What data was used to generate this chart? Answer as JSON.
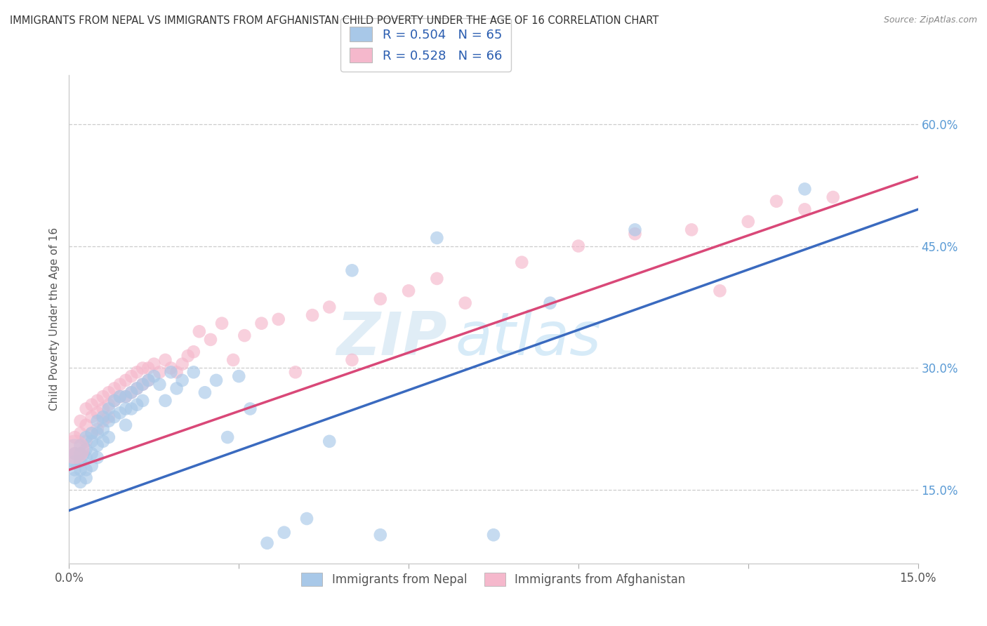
{
  "title": "IMMIGRANTS FROM NEPAL VS IMMIGRANTS FROM AFGHANISTAN CHILD POVERTY UNDER THE AGE OF 16 CORRELATION CHART",
  "source": "Source: ZipAtlas.com",
  "ylabel": "Child Poverty Under the Age of 16",
  "xlim": [
    0.0,
    0.15
  ],
  "ylim": [
    0.06,
    0.66
  ],
  "yticks_right": [
    0.15,
    0.3,
    0.45,
    0.6
  ],
  "ytick_labels_right": [
    "15.0%",
    "30.0%",
    "45.0%",
    "60.0%"
  ],
  "nepal_color": "#a8c8e8",
  "nepal_line_color": "#3a6abf",
  "afghanistan_color": "#f5b8cc",
  "afghanistan_line_color": "#d94878",
  "nepal_R": 0.504,
  "nepal_N": 65,
  "afghanistan_R": 0.528,
  "afghanistan_N": 66,
  "watermark_zip": "ZIP",
  "watermark_atlas": "atlas",
  "background_color": "#ffffff",
  "nepal_x": [
    0.001,
    0.001,
    0.001,
    0.001,
    0.002,
    0.002,
    0.002,
    0.002,
    0.002,
    0.003,
    0.003,
    0.003,
    0.003,
    0.003,
    0.004,
    0.004,
    0.004,
    0.004,
    0.005,
    0.005,
    0.005,
    0.005,
    0.006,
    0.006,
    0.006,
    0.007,
    0.007,
    0.007,
    0.008,
    0.008,
    0.009,
    0.009,
    0.01,
    0.01,
    0.01,
    0.011,
    0.011,
    0.012,
    0.012,
    0.013,
    0.013,
    0.014,
    0.015,
    0.016,
    0.017,
    0.018,
    0.019,
    0.02,
    0.022,
    0.024,
    0.026,
    0.028,
    0.03,
    0.032,
    0.035,
    0.038,
    0.042,
    0.046,
    0.05,
    0.055,
    0.065,
    0.075,
    0.085,
    0.1,
    0.13
  ],
  "nepal_y": [
    0.195,
    0.185,
    0.175,
    0.165,
    0.205,
    0.195,
    0.185,
    0.175,
    0.16,
    0.215,
    0.2,
    0.19,
    0.175,
    0.165,
    0.22,
    0.21,
    0.195,
    0.18,
    0.235,
    0.22,
    0.205,
    0.19,
    0.24,
    0.225,
    0.21,
    0.25,
    0.235,
    0.215,
    0.26,
    0.24,
    0.265,
    0.245,
    0.265,
    0.25,
    0.23,
    0.27,
    0.25,
    0.275,
    0.255,
    0.28,
    0.26,
    0.285,
    0.29,
    0.28,
    0.26,
    0.295,
    0.275,
    0.285,
    0.295,
    0.27,
    0.285,
    0.215,
    0.29,
    0.25,
    0.085,
    0.098,
    0.115,
    0.21,
    0.42,
    0.095,
    0.46,
    0.095,
    0.38,
    0.47,
    0.52
  ],
  "afghanistan_x": [
    0.001,
    0.001,
    0.002,
    0.002,
    0.002,
    0.003,
    0.003,
    0.003,
    0.004,
    0.004,
    0.004,
    0.005,
    0.005,
    0.005,
    0.006,
    0.006,
    0.006,
    0.007,
    0.007,
    0.007,
    0.008,
    0.008,
    0.009,
    0.009,
    0.01,
    0.01,
    0.011,
    0.011,
    0.012,
    0.012,
    0.013,
    0.013,
    0.014,
    0.014,
    0.015,
    0.016,
    0.017,
    0.018,
    0.019,
    0.02,
    0.021,
    0.022,
    0.023,
    0.025,
    0.027,
    0.029,
    0.031,
    0.034,
    0.037,
    0.04,
    0.043,
    0.046,
    0.05,
    0.055,
    0.06,
    0.065,
    0.07,
    0.08,
    0.09,
    0.1,
    0.11,
    0.115,
    0.12,
    0.125,
    0.13,
    0.135
  ],
  "afghanistan_y": [
    0.215,
    0.195,
    0.235,
    0.22,
    0.195,
    0.25,
    0.23,
    0.21,
    0.255,
    0.24,
    0.22,
    0.26,
    0.245,
    0.225,
    0.265,
    0.25,
    0.235,
    0.27,
    0.255,
    0.24,
    0.275,
    0.26,
    0.28,
    0.265,
    0.285,
    0.265,
    0.29,
    0.27,
    0.295,
    0.275,
    0.3,
    0.28,
    0.3,
    0.285,
    0.305,
    0.295,
    0.31,
    0.3,
    0.295,
    0.305,
    0.315,
    0.32,
    0.345,
    0.335,
    0.355,
    0.31,
    0.34,
    0.355,
    0.36,
    0.295,
    0.365,
    0.375,
    0.31,
    0.385,
    0.395,
    0.41,
    0.38,
    0.43,
    0.45,
    0.465,
    0.47,
    0.395,
    0.48,
    0.505,
    0.495,
    0.51
  ],
  "nepal_line_x0": 0.0,
  "nepal_line_y0": 0.125,
  "nepal_line_x1": 0.15,
  "nepal_line_y1": 0.495,
  "afghan_line_x0": 0.0,
  "afghan_line_y0": 0.175,
  "afghan_line_x1": 0.15,
  "afghan_line_y1": 0.535
}
